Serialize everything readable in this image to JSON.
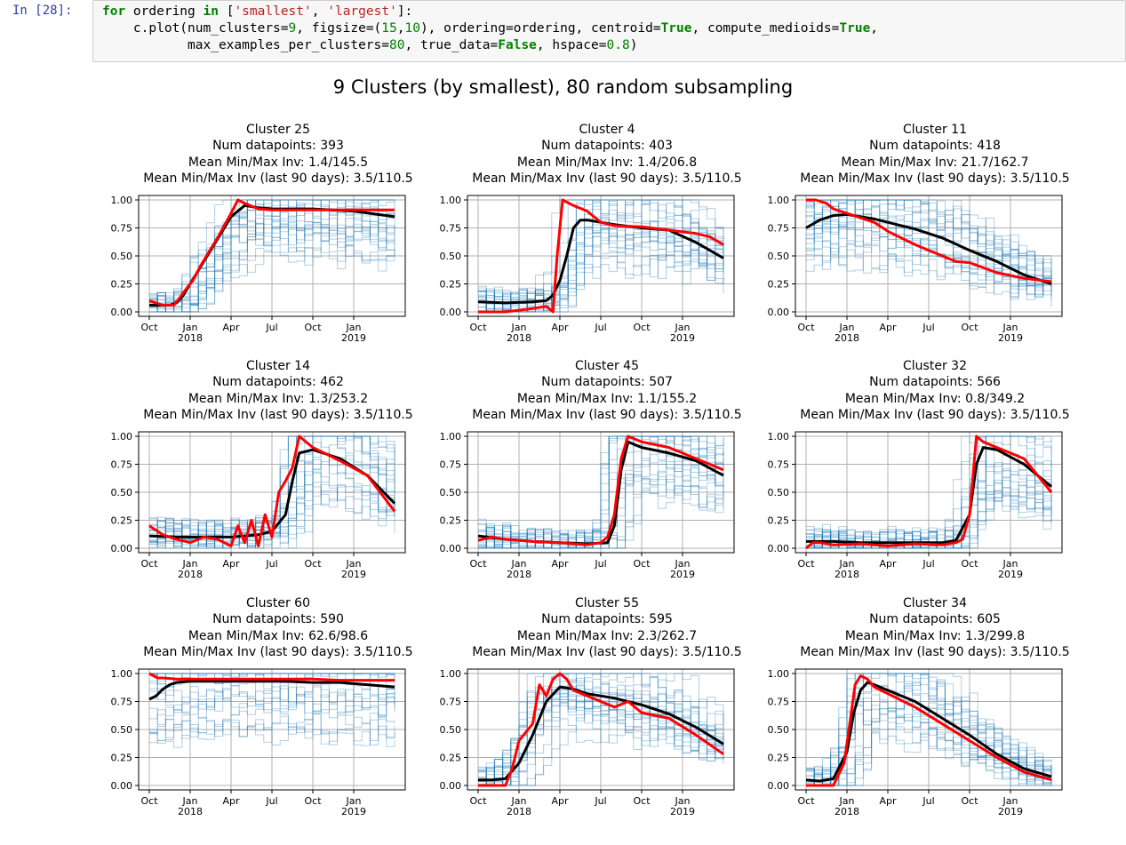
{
  "cell": {
    "prompt": "In [28]:",
    "code_lines": [
      [
        {
          "t": "kw",
          "v": "for"
        },
        {
          "t": "p",
          "v": " ordering "
        },
        {
          "t": "kw",
          "v": "in"
        },
        {
          "t": "p",
          "v": " ["
        },
        {
          "t": "str",
          "v": "'smallest'"
        },
        {
          "t": "p",
          "v": ", "
        },
        {
          "t": "str",
          "v": "'largest'"
        },
        {
          "t": "p",
          "v": "]:"
        }
      ],
      [
        {
          "t": "p",
          "v": "    c.plot(num_clusters="
        },
        {
          "t": "num",
          "v": "9"
        },
        {
          "t": "p",
          "v": ", figsize=("
        },
        {
          "t": "num",
          "v": "15"
        },
        {
          "t": "p",
          "v": ","
        },
        {
          "t": "num",
          "v": "10"
        },
        {
          "t": "p",
          "v": "), ordering=ordering, centroid="
        },
        {
          "t": "kw",
          "v": "True"
        },
        {
          "t": "p",
          "v": ", compute_medioids="
        },
        {
          "t": "kw",
          "v": "True"
        },
        {
          "t": "p",
          "v": ","
        }
      ],
      [
        {
          "t": "p",
          "v": "           max_examples_per_clusters="
        },
        {
          "t": "num",
          "v": "80"
        },
        {
          "t": "p",
          "v": ", true_data="
        },
        {
          "t": "kw",
          "v": "False"
        },
        {
          "t": "p",
          "v": ", hspace="
        },
        {
          "t": "num",
          "v": "0.8"
        },
        {
          "t": "p",
          "v": ")"
        }
      ]
    ]
  },
  "figure": {
    "title": "9 Clusters (by smallest), 80 random subsampling"
  },
  "colors": {
    "samples": "#1f77b4",
    "centroid": "#000000",
    "medioid": "#ff0000",
    "grid": "#b0b0b0",
    "prompt": "#303f9f"
  },
  "chart_data": [
    {
      "type": "line",
      "title": "Cluster 25",
      "datapoints_label": "Num datapoints: 393",
      "minmax_label": "Mean Min/Max Inv: 1.4/145.5",
      "recent_label": "Mean Min/Max Inv (last 90 days): 3.5/110.5",
      "x_ticks": [
        "Oct",
        "Jan",
        "Apr",
        "Jul",
        "Oct",
        "Jan",
        "2018",
        "2019"
      ],
      "y_ticks": [
        "0.00",
        "0.25",
        "0.50",
        "0.75",
        "1.00"
      ],
      "ylim": [
        0,
        1
      ],
      "grid": true,
      "series": [
        {
          "x": [
            0,
            1.5,
            2,
            2.5,
            3,
            3.5,
            4,
            5,
            6,
            7,
            8,
            9,
            10,
            12,
            15,
            18
          ],
          "y": [
            0.06,
            0.06,
            0.08,
            0.15,
            0.25,
            0.35,
            0.45,
            0.65,
            0.85,
            0.95,
            0.93,
            0.92,
            0.92,
            0.92,
            0.9,
            0.85
          ]
        },
        {
          "x": [
            0,
            1,
            1.8,
            2.2,
            2.8,
            3.2,
            3.8,
            4.2,
            5,
            6,
            6.5,
            7,
            8,
            9,
            12,
            15,
            18
          ],
          "y": [
            0.1,
            0.06,
            0.06,
            0.12,
            0.22,
            0.28,
            0.42,
            0.5,
            0.66,
            0.88,
            1.0,
            0.97,
            0.92,
            0.91,
            0.91,
            0.91,
            0.91
          ]
        }
      ]
    },
    {
      "type": "line",
      "title": "Cluster 4",
      "datapoints_label": "Num datapoints: 403",
      "minmax_label": "Mean Min/Max Inv: 1.4/206.8",
      "recent_label": "Mean Min/Max Inv (last 90 days): 3.5/110.5",
      "x_ticks": [
        "Oct",
        "Jan",
        "Apr",
        "Jul",
        "Oct",
        "Jan",
        "2018",
        "2019"
      ],
      "y_ticks": [
        "0.00",
        "0.25",
        "0.50",
        "0.75",
        "1.00"
      ],
      "ylim": [
        0,
        1
      ],
      "grid": true,
      "series": [
        {
          "x": [
            0,
            2,
            4,
            5,
            5.5,
            6,
            6.5,
            7,
            7.5,
            8,
            9,
            10,
            12,
            14,
            16,
            17,
            18
          ],
          "y": [
            0.09,
            0.08,
            0.09,
            0.1,
            0.15,
            0.28,
            0.5,
            0.75,
            0.82,
            0.82,
            0.8,
            0.78,
            0.75,
            0.73,
            0.62,
            0.55,
            0.48
          ]
        },
        {
          "x": [
            0,
            2,
            4,
            5,
            5.5,
            5.8,
            6.2,
            6.5,
            7,
            8,
            9,
            10,
            12,
            14,
            16,
            17,
            18
          ],
          "y": [
            0.0,
            0.0,
            0.03,
            0.05,
            0.0,
            0.5,
            1.0,
            0.98,
            0.95,
            0.9,
            0.8,
            0.77,
            0.76,
            0.73,
            0.7,
            0.67,
            0.6
          ]
        }
      ]
    },
    {
      "type": "line",
      "title": "Cluster 11",
      "datapoints_label": "Num datapoints: 418",
      "minmax_label": "Mean Min/Max Inv: 21.7/162.7",
      "recent_label": "Mean Min/Max Inv (last 90 days): 3.5/110.5",
      "x_ticks": [
        "Oct",
        "Jan",
        "Apr",
        "Jul",
        "Oct",
        "Jan",
        "2018",
        "2019"
      ],
      "y_ticks": [
        "0.00",
        "0.25",
        "0.50",
        "0.75",
        "1.00"
      ],
      "ylim": [
        0,
        1
      ],
      "grid": true,
      "series": [
        {
          "x": [
            0,
            1,
            2,
            3,
            4,
            5,
            6,
            8,
            10,
            12,
            14,
            16,
            18
          ],
          "y": [
            0.75,
            0.82,
            0.86,
            0.87,
            0.85,
            0.83,
            0.8,
            0.74,
            0.66,
            0.55,
            0.45,
            0.33,
            0.25
          ]
        },
        {
          "x": [
            0,
            0.7,
            1.5,
            2,
            3,
            4,
            5,
            6,
            8,
            10,
            11,
            12,
            14,
            16,
            18
          ],
          "y": [
            1.0,
            1.0,
            0.97,
            0.92,
            0.88,
            0.84,
            0.8,
            0.72,
            0.6,
            0.5,
            0.45,
            0.44,
            0.35,
            0.3,
            0.27
          ]
        }
      ]
    },
    {
      "type": "line",
      "title": "Cluster 14",
      "datapoints_label": "Num datapoints: 462",
      "minmax_label": "Mean Min/Max Inv: 1.3/253.2",
      "recent_label": "Mean Min/Max Inv (last 90 days): 3.5/110.5",
      "x_ticks": [
        "Oct",
        "Jan",
        "Apr",
        "Jul",
        "Oct",
        "Jan",
        "2018",
        "2019"
      ],
      "y_ticks": [
        "0.00",
        "0.25",
        "0.50",
        "0.75",
        "1.00"
      ],
      "ylim": [
        0,
        1
      ],
      "grid": true,
      "series": [
        {
          "x": [
            0,
            2,
            4,
            6,
            8,
            9,
            10,
            10.5,
            11,
            12,
            14,
            16,
            18
          ],
          "y": [
            0.11,
            0.1,
            0.1,
            0.1,
            0.12,
            0.15,
            0.3,
            0.6,
            0.85,
            0.88,
            0.8,
            0.65,
            0.4
          ]
        },
        {
          "x": [
            0,
            1,
            2,
            3,
            4,
            5,
            6,
            6.5,
            7,
            7.5,
            8,
            8.5,
            9,
            9.5,
            10,
            10.5,
            11,
            12,
            14,
            16,
            18
          ],
          "y": [
            0.2,
            0.12,
            0.08,
            0.05,
            0.1,
            0.08,
            0.02,
            0.2,
            0.05,
            0.25,
            0.02,
            0.3,
            0.1,
            0.5,
            0.6,
            0.72,
            1.0,
            0.9,
            0.78,
            0.65,
            0.33
          ]
        }
      ]
    },
    {
      "type": "line",
      "title": "Cluster 45",
      "datapoints_label": "Num datapoints: 507",
      "minmax_label": "Mean Min/Max Inv: 1.1/155.2",
      "recent_label": "Mean Min/Max Inv (last 90 days): 3.5/110.5",
      "x_ticks": [
        "Oct",
        "Jan",
        "Apr",
        "Jul",
        "Oct",
        "Jan",
        "2018",
        "2019"
      ],
      "y_ticks": [
        "0.00",
        "0.25",
        "0.50",
        "0.75",
        "1.00"
      ],
      "ylim": [
        0,
        1
      ],
      "grid": true,
      "series": [
        {
          "x": [
            0,
            2,
            4,
            6,
            8,
            9.5,
            10,
            10.5,
            11,
            12,
            14,
            16,
            18
          ],
          "y": [
            0.11,
            0.08,
            0.06,
            0.05,
            0.04,
            0.05,
            0.2,
            0.7,
            0.95,
            0.9,
            0.85,
            0.78,
            0.65
          ]
        },
        {
          "x": [
            0,
            1,
            2,
            4,
            6,
            8,
            9,
            9.5,
            10,
            10.5,
            11,
            12,
            14,
            16,
            18
          ],
          "y": [
            0.07,
            0.1,
            0.08,
            0.06,
            0.05,
            0.03,
            0.05,
            0.1,
            0.3,
            0.8,
            1.0,
            0.95,
            0.9,
            0.8,
            0.7
          ]
        }
      ]
    },
    {
      "type": "line",
      "title": "Cluster 32",
      "datapoints_label": "Num datapoints: 566",
      "minmax_label": "Mean Min/Max Inv: 0.8/349.2",
      "recent_label": "Mean Min/Max Inv (last 90 days): 3.5/110.5",
      "x_ticks": [
        "Oct",
        "Jan",
        "Apr",
        "Jul",
        "Oct",
        "Jan",
        "2018",
        "2019"
      ],
      "y_ticks": [
        "0.00",
        "0.25",
        "0.50",
        "0.75",
        "1.00"
      ],
      "ylim": [
        0,
        1
      ],
      "grid": true,
      "series": [
        {
          "x": [
            0,
            2,
            4,
            6,
            8,
            10,
            11,
            12,
            12.5,
            13,
            14,
            16,
            18
          ],
          "y": [
            0.06,
            0.06,
            0.05,
            0.05,
            0.05,
            0.05,
            0.07,
            0.3,
            0.75,
            0.9,
            0.88,
            0.75,
            0.55
          ]
        },
        {
          "x": [
            0,
            0.5,
            1,
            2,
            4,
            6,
            8,
            10,
            11,
            11.5,
            12,
            12.5,
            13,
            14,
            16,
            18
          ],
          "y": [
            0.0,
            0.05,
            0.05,
            0.03,
            0.04,
            0.02,
            0.04,
            0.03,
            0.05,
            0.08,
            0.3,
            1.0,
            0.95,
            0.9,
            0.8,
            0.5
          ]
        }
      ]
    },
    {
      "type": "line",
      "title": "Cluster 60",
      "datapoints_label": "Num datapoints: 590",
      "minmax_label": "Mean Min/Max Inv: 62.6/98.6",
      "recent_label": "Mean Min/Max Inv (last 90 days): 3.5/110.5",
      "x_ticks": [
        "Oct",
        "Jan",
        "Apr",
        "Jul",
        "Oct",
        "Jan",
        "2018",
        "2019"
      ],
      "y_ticks": [
        "0.00",
        "0.25",
        "0.50",
        "0.75",
        "1.00"
      ],
      "ylim": [
        0,
        1
      ],
      "grid": true,
      "series": [
        {
          "x": [
            0,
            0.5,
            1,
            1.5,
            2,
            3,
            4,
            6,
            8,
            10,
            12,
            14,
            16,
            18
          ],
          "y": [
            0.77,
            0.8,
            0.86,
            0.9,
            0.92,
            0.93,
            0.93,
            0.93,
            0.93,
            0.93,
            0.92,
            0.92,
            0.9,
            0.88
          ]
        },
        {
          "x": [
            0,
            0.3,
            0.6,
            1,
            2,
            4,
            6,
            8,
            10,
            12,
            14,
            16,
            18
          ],
          "y": [
            1.0,
            0.98,
            0.96,
            0.96,
            0.95,
            0.95,
            0.95,
            0.95,
            0.95,
            0.95,
            0.94,
            0.94,
            0.94
          ]
        }
      ]
    },
    {
      "type": "line",
      "title": "Cluster 55",
      "datapoints_label": "Num datapoints: 595",
      "minmax_label": "Mean Min/Max Inv: 2.3/262.7",
      "recent_label": "Mean Min/Max Inv (last 90 days): 3.5/110.5",
      "x_ticks": [
        "Oct",
        "Jan",
        "Apr",
        "Jul",
        "Oct",
        "Jan",
        "2018",
        "2019"
      ],
      "y_ticks": [
        "0.00",
        "0.25",
        "0.50",
        "0.75",
        "1.00"
      ],
      "ylim": [
        0,
        1
      ],
      "grid": true,
      "series": [
        {
          "x": [
            0,
            1,
            2,
            3,
            4,
            5,
            6,
            7,
            8,
            10,
            12,
            14,
            16,
            18
          ],
          "y": [
            0.05,
            0.05,
            0.06,
            0.2,
            0.45,
            0.75,
            0.88,
            0.86,
            0.82,
            0.78,
            0.72,
            0.64,
            0.52,
            0.37
          ]
        },
        {
          "x": [
            0,
            1,
            2,
            2.5,
            3,
            4,
            4.5,
            5,
            5.5,
            6,
            6.5,
            7,
            8,
            10,
            11,
            12,
            14,
            16,
            18
          ],
          "y": [
            0.0,
            0.0,
            0.0,
            0.15,
            0.4,
            0.55,
            0.9,
            0.8,
            0.95,
            1.0,
            0.95,
            0.85,
            0.8,
            0.7,
            0.75,
            0.65,
            0.6,
            0.45,
            0.28
          ]
        }
      ]
    },
    {
      "type": "line",
      "title": "Cluster 34",
      "datapoints_label": "Num datapoints: 605",
      "minmax_label": "Mean Min/Max Inv: 1.3/299.8",
      "recent_label": "Mean Min/Max Inv (last 90 days): 3.5/110.5",
      "x_ticks": [
        "Oct",
        "Jan",
        "Apr",
        "Jul",
        "Oct",
        "Jan",
        "2018",
        "2019"
      ],
      "y_ticks": [
        "0.00",
        "0.25",
        "0.50",
        "0.75",
        "1.00"
      ],
      "ylim": [
        0,
        1
      ],
      "grid": true,
      "series": [
        {
          "x": [
            0,
            1,
            2,
            3,
            3.5,
            4,
            4.5,
            5,
            6,
            8,
            10,
            12,
            14,
            16,
            18
          ],
          "y": [
            0.05,
            0.04,
            0.06,
            0.3,
            0.65,
            0.85,
            0.92,
            0.9,
            0.85,
            0.75,
            0.6,
            0.45,
            0.28,
            0.15,
            0.08
          ]
        },
        {
          "x": [
            0,
            1,
            2,
            2.8,
            3.2,
            3.6,
            4,
            4.5,
            5,
            6,
            8,
            10,
            12,
            14,
            16,
            18
          ],
          "y": [
            0.0,
            0.0,
            0.0,
            0.2,
            0.55,
            0.9,
            0.98,
            0.95,
            0.88,
            0.82,
            0.7,
            0.55,
            0.4,
            0.25,
            0.12,
            0.05
          ]
        }
      ]
    }
  ]
}
